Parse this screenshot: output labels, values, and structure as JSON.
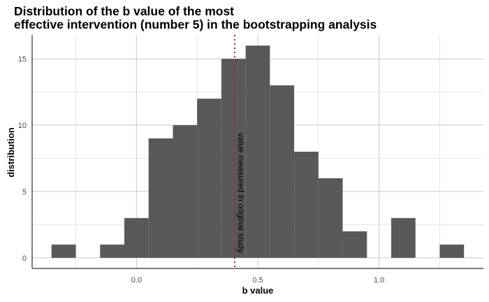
{
  "chart_data": {
    "type": "bar",
    "title_lines": [
      "Distribution of the b value of the most",
      "effective intervention (number 5) in the bootstrapping analysis"
    ],
    "xlabel": "b value",
    "ylabel": "distribution",
    "bin_width": 0.1,
    "bins": [
      {
        "start": -0.35,
        "count": 1
      },
      {
        "start": -0.25,
        "count": 0
      },
      {
        "start": -0.15,
        "count": 1
      },
      {
        "start": -0.05,
        "count": 3
      },
      {
        "start": 0.05,
        "count": 9
      },
      {
        "start": 0.15,
        "count": 10
      },
      {
        "start": 0.25,
        "count": 12
      },
      {
        "start": 0.35,
        "count": 15
      },
      {
        "start": 0.45,
        "count": 16
      },
      {
        "start": 0.55,
        "count": 13
      },
      {
        "start": 0.65,
        "count": 8
      },
      {
        "start": 0.75,
        "count": 6
      },
      {
        "start": 0.85,
        "count": 2
      },
      {
        "start": 0.95,
        "count": 0
      },
      {
        "start": 1.05,
        "count": 3
      },
      {
        "start": 1.15,
        "count": 0
      },
      {
        "start": 1.25,
        "count": 1
      }
    ],
    "xlim": [
      -0.43,
      1.43
    ],
    "ylim": [
      -0.8,
      16.8
    ],
    "x_ticks": [
      0.0,
      0.5,
      1.0
    ],
    "x_tick_labels": [
      "0.0",
      "0.5",
      "1.0"
    ],
    "y_ticks": [
      0,
      5,
      10,
      15
    ],
    "y_tick_labels": [
      "0",
      "5",
      "10",
      "15"
    ],
    "reference_line": {
      "x": 0.405,
      "label": "value measured in original study",
      "color": "#b22222"
    },
    "bar_color": "#595959",
    "grid": true
  }
}
